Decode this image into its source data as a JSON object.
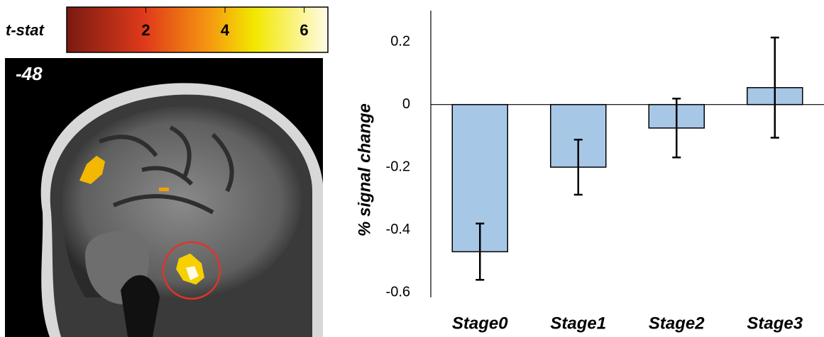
{
  "colorbar": {
    "label": "t-stat",
    "ticks": [
      2,
      4,
      6
    ],
    "lim": [
      0,
      6.6
    ]
  },
  "slice_label": "-48",
  "chart_data": {
    "type": "bar",
    "y_label": "% signal change",
    "categories": [
      "Stage0",
      "Stage1",
      "Stage2",
      "Stage3"
    ],
    "values": [
      -0.47,
      -0.2,
      -0.075,
      0.054
    ],
    "errors": [
      0.09,
      0.088,
      0.094,
      0.16
    ],
    "color": "#a7c7e7",
    "ylim": [
      -0.6,
      0.3
    ],
    "yticks": [
      -0.6,
      -0.4,
      -0.2,
      0,
      0.2
    ],
    "grid": false
  }
}
